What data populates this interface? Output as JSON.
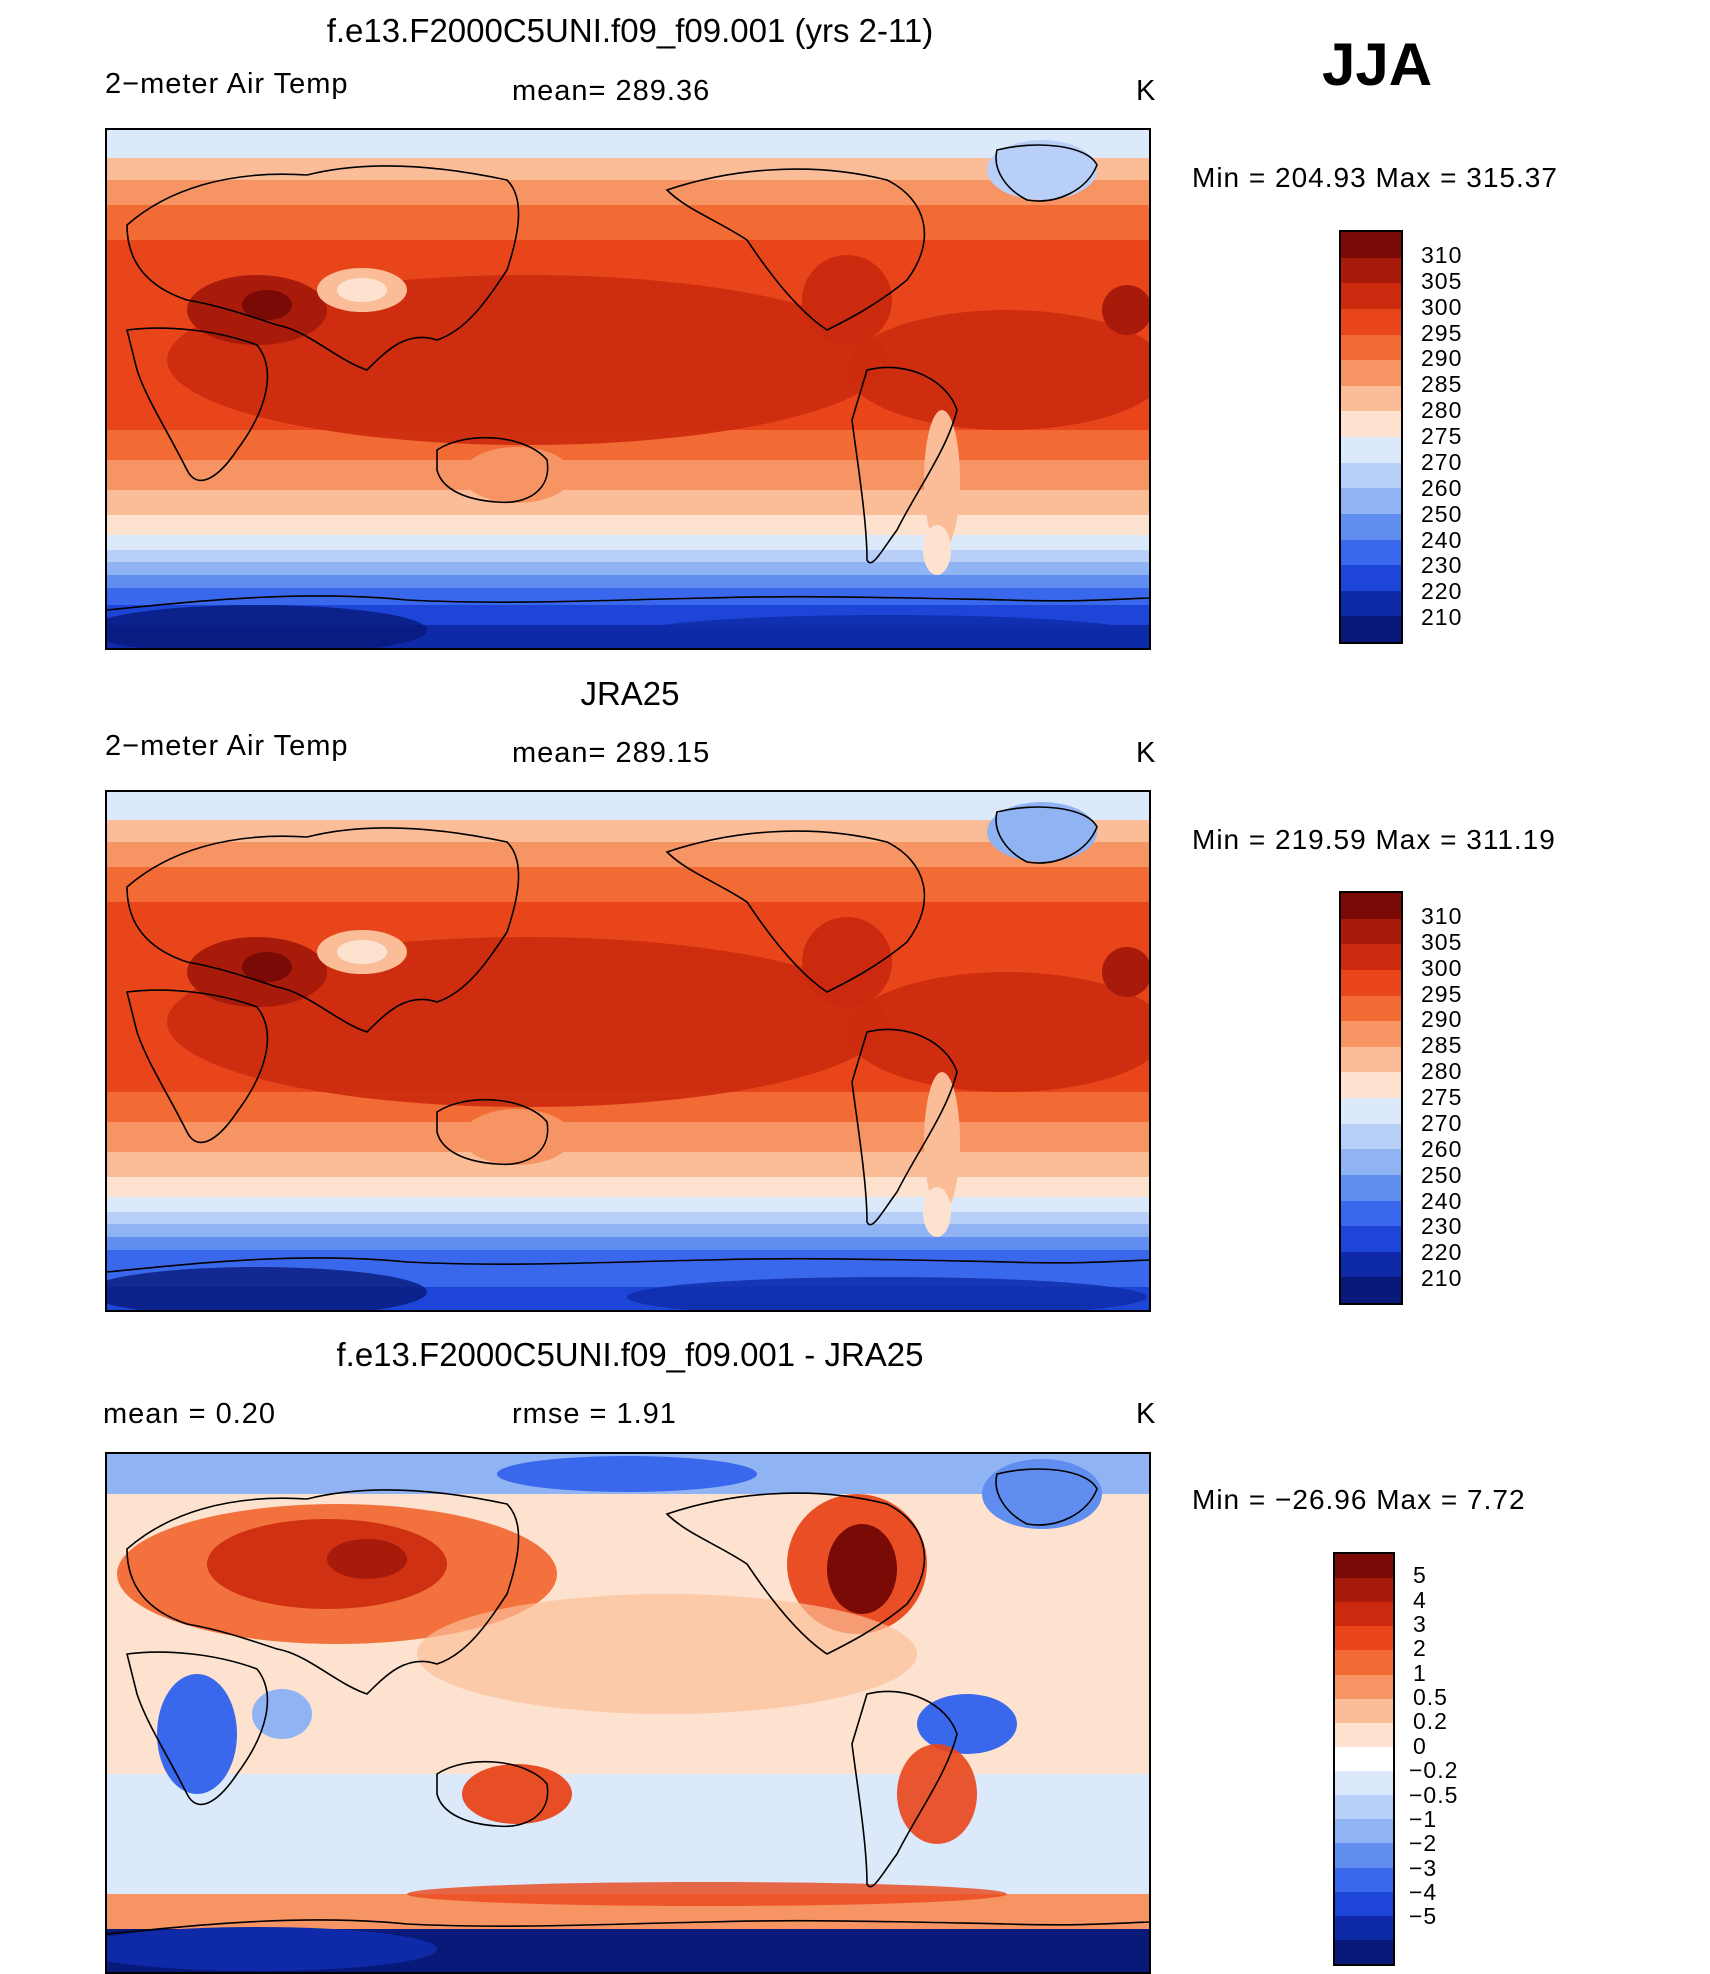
{
  "season_label": "JJA",
  "panels": [
    {
      "title": "f.e13.F2000C5UNI.f09_f09.001 (yrs 2-11)",
      "left_label": "2−meter Air Temp",
      "center_label": "mean=  289.36",
      "unit": "K",
      "minmax": "Min  =  204.93  Max  =  315.37",
      "kind": "abs",
      "colorbar": [
        "310",
        "305",
        "300",
        "295",
        "290",
        "285",
        "280",
        "275",
        "270",
        "260",
        "250",
        "240",
        "230",
        "220",
        "210"
      ]
    },
    {
      "title": "JRA25",
      "left_label": "2−meter Air Temp",
      "center_label": "mean=  289.15",
      "unit": "K",
      "minmax": "Min  =  219.59  Max  =  311.19",
      "kind": "abs",
      "colorbar": [
        "310",
        "305",
        "300",
        "295",
        "290",
        "285",
        "280",
        "275",
        "270",
        "260",
        "250",
        "240",
        "230",
        "220",
        "210"
      ]
    },
    {
      "title": "f.e13.F2000C5UNI.f09_f09.001 - JRA25",
      "left_label": "mean  =      0.20",
      "center_label": "rmse  =      1.91",
      "unit": "K",
      "minmax": "Min  =  −26.96  Max  =       7.72",
      "kind": "diff",
      "colorbar": [
        "5",
        "4",
        "3",
        "2",
        "1",
        "0.5",
        "0.2",
        "0",
        "−0.2",
        "−0.5",
        "−1",
        "−2",
        "−3",
        "−4",
        "−5"
      ]
    }
  ],
  "colors": {
    "abs_scale": [
      "#7a0a05",
      "#a81a0a",
      "#cc2a0e",
      "#e8461a",
      "#f26a34",
      "#f79464",
      "#fbbd98",
      "#fde3cf",
      "#dce9fb",
      "#b8d0f8",
      "#8fb3f3",
      "#5f8ef0",
      "#3a68ec",
      "#1d45d8",
      "#0e2aa8",
      "#08197a"
    ],
    "diff_scale": [
      "#7a0a05",
      "#a81a0a",
      "#cc2a0e",
      "#e8461a",
      "#f26a34",
      "#f79464",
      "#fbbd98",
      "#fde3cf",
      "#ffffff",
      "#dce9fb",
      "#b8d0f8",
      "#8fb3f3",
      "#5f8ef0",
      "#3a68ec",
      "#1d45d8",
      "#0e2aa8",
      "#08197a"
    ]
  }
}
